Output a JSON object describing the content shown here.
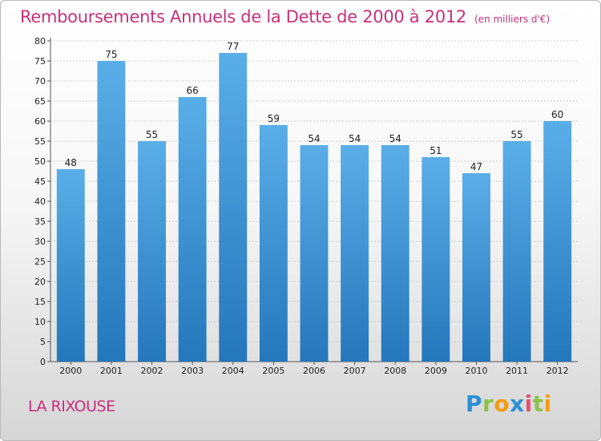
{
  "header": {
    "title": "Remboursements Annuels de la Dette de 2000 à 2012",
    "unit": "(en milliers d'€)"
  },
  "footer": {
    "place": "LA RIXOUSE",
    "logo": "Proxiti"
  },
  "colors": {
    "title": "#c8307a",
    "bar_top": "#5aaee8",
    "bar_bottom": "#2477bb",
    "grid": "#cfcfcf"
  },
  "chart_data": {
    "type": "bar",
    "title": "Remboursements Annuels de la Dette de 2000 à 2012",
    "subtitle": "(en milliers d'€)",
    "categories": [
      "2000",
      "2001",
      "2002",
      "2003",
      "2004",
      "2005",
      "2006",
      "2007",
      "2008",
      "2009",
      "2010",
      "2011",
      "2012"
    ],
    "values": [
      48,
      75,
      55,
      66,
      77,
      59,
      54,
      54,
      54,
      51,
      47,
      55,
      60
    ],
    "ylim": [
      0,
      80
    ],
    "ytick_step": 5,
    "grid": true,
    "data_labels": true
  }
}
